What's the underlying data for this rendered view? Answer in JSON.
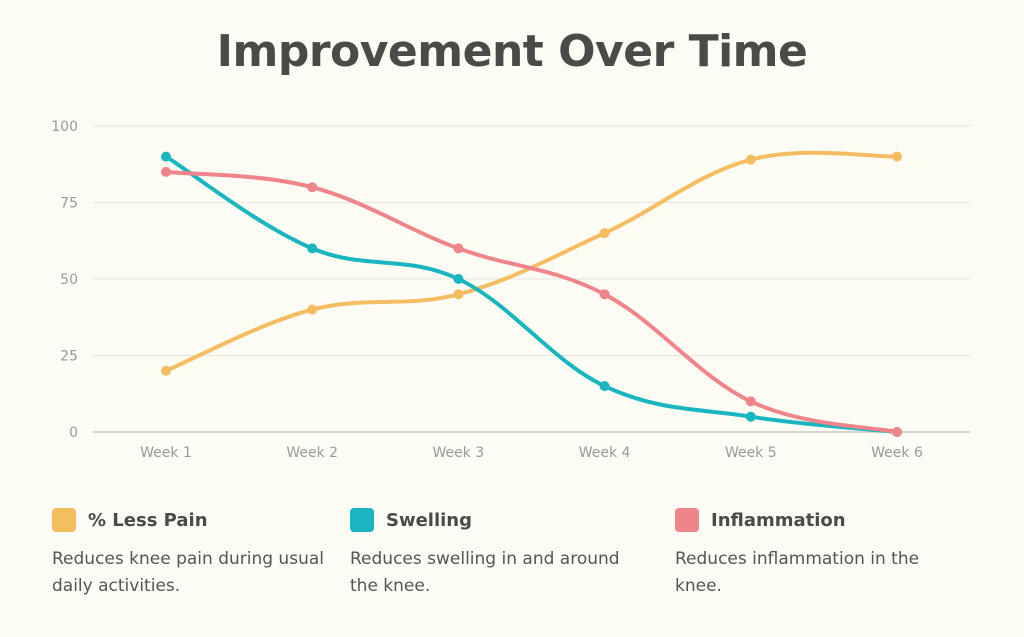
{
  "chart_data": {
    "type": "line",
    "title": "Improvement Over Time",
    "xlabel": "",
    "ylabel": "",
    "categories": [
      "Week 1",
      "Week 2",
      "Week 3",
      "Week 4",
      "Week 5",
      "Week 6"
    ],
    "ylim": [
      0,
      100
    ],
    "yticks": [
      0,
      25,
      50,
      75,
      100
    ],
    "grid": true,
    "smooth": true,
    "legend_position": "bottom",
    "series": [
      {
        "key": "pain",
        "name": "% Less Pain",
        "color": "#f5bd62",
        "values": [
          20,
          40,
          45,
          65,
          89,
          90
        ],
        "description": "Reduces knee pain during usual daily activities."
      },
      {
        "key": "swelling",
        "name": "Swelling",
        "color": "#1ab6c0",
        "values": [
          90,
          60,
          50,
          15,
          5,
          0
        ],
        "description": "Reduces swelling in and around the knee."
      },
      {
        "key": "inflammation",
        "name": "Inflammation",
        "color": "#ef858a",
        "values": [
          85,
          80,
          60,
          45,
          10,
          0
        ],
        "description": "Reduces inflammation in the knee."
      }
    ]
  }
}
